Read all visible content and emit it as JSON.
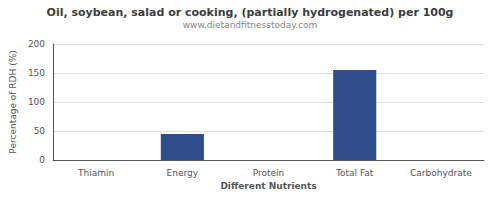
{
  "chart_data": {
    "type": "bar",
    "title": "Oil, soybean, salad or cooking, (partially hydrogenated) per 100g",
    "subtitle": "www.dietandfitnesstoday.com",
    "xlabel": "Different Nutrients",
    "ylabel": "Percentage of RDH (%)",
    "categories": [
      "Thiamin",
      "Energy",
      "Protein",
      "Total Fat",
      "Carbohydrate"
    ],
    "values": [
      0.0,
      45.0,
      0.0,
      155.0,
      0.0
    ],
    "color": "#2e4d8a",
    "ylim": [
      0,
      200
    ],
    "yticks": [
      0,
      50,
      100,
      150,
      200
    ],
    "grid": true
  }
}
